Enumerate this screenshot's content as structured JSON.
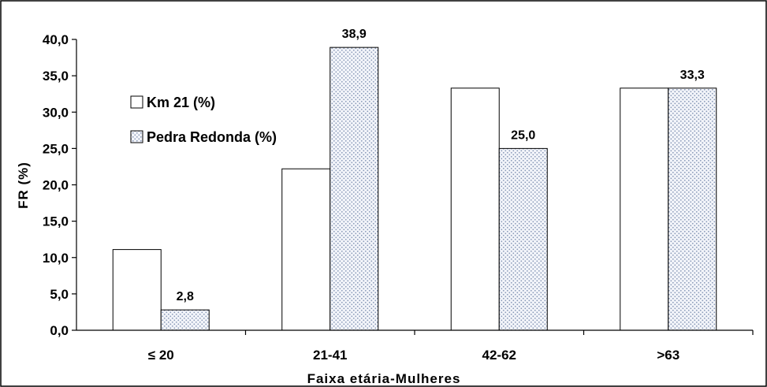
{
  "chart_data": {
    "type": "bar",
    "categories": [
      "≤ 20",
      "21-41",
      "42-62",
      ">63"
    ],
    "series": [
      {
        "name": "Km 21 (%)",
        "values": [
          11.1,
          22.2,
          33.3,
          33.3
        ],
        "fill": "white",
        "labels": [
          "",
          "",
          "",
          ""
        ]
      },
      {
        "name": "Pedra Redonda (%)",
        "values": [
          2.8,
          38.9,
          25.0,
          33.3
        ],
        "fill": "dotted",
        "labels": [
          "2,8",
          "38,9",
          "25,0",
          "33,3"
        ]
      }
    ],
    "xlabel": "Faixa etária-Mulheres",
    "ylabel": "FR (%)",
    "ylim": [
      0,
      40
    ],
    "yticks": [
      "0,0",
      "5,0",
      "10,0",
      "15,0",
      "20,0",
      "25,0",
      "30,0",
      "35,0",
      "40,0"
    ],
    "legend": "inside top-left",
    "grid": false,
    "colors": {
      "border": "#000000",
      "background": "#ffffff",
      "dots": "#8a9ab8",
      "dot_bg": "#f3f5fa"
    }
  }
}
